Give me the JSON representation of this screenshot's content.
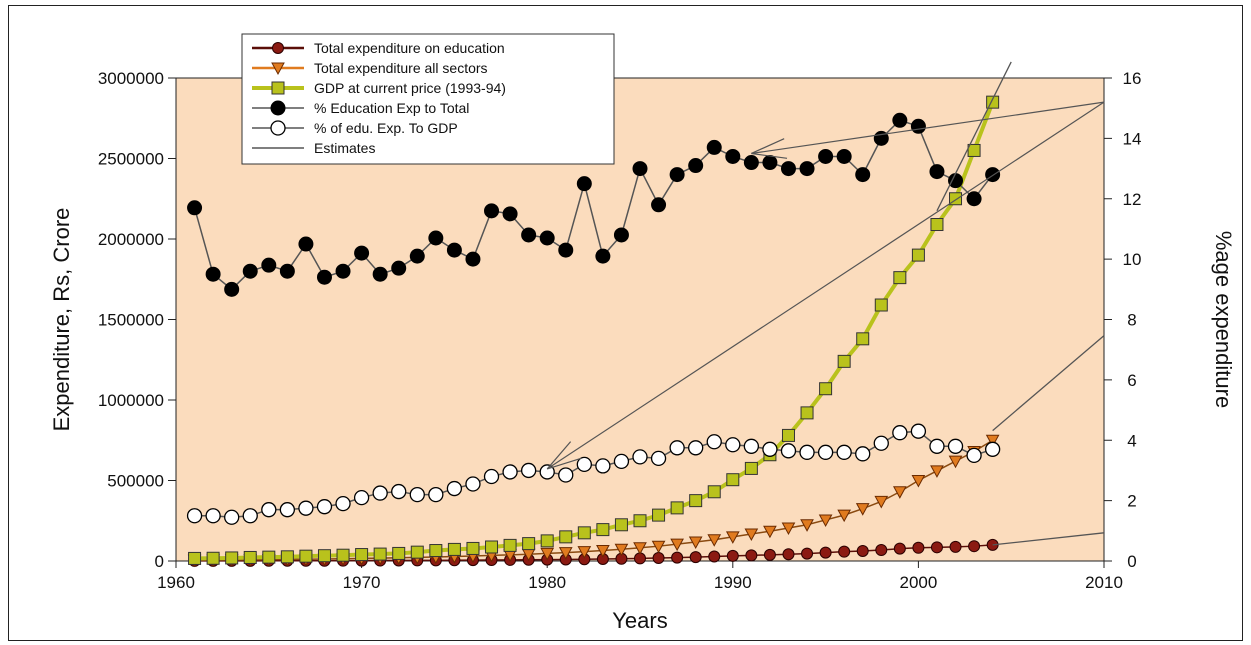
{
  "chart_data": {
    "type": "line",
    "xlabel": "Years",
    "ylabel_left": "Expenditure, Rs, Crore",
    "ylabel_right": "%age expenditure",
    "xlim": [
      1960,
      2010
    ],
    "ylim_left": [
      0,
      3000000
    ],
    "ylim_right": [
      0,
      16
    ],
    "xticks": [
      "1960",
      "1970",
      "1980",
      "1990",
      "2000",
      "2010"
    ],
    "yticks_left": [
      "0",
      "500000",
      "1000000",
      "1500000",
      "2000000",
      "2500000",
      "3000000"
    ],
    "yticks_right": [
      "0",
      "2",
      "4",
      "6",
      "8",
      "10",
      "12",
      "14",
      "16"
    ],
    "legend_position": "top-left",
    "background_color": "#fbdcbd",
    "x": [
      1961,
      1962,
      1963,
      1964,
      1965,
      1966,
      1967,
      1968,
      1969,
      1970,
      1971,
      1972,
      1973,
      1974,
      1975,
      1976,
      1977,
      1978,
      1979,
      1980,
      1981,
      1982,
      1983,
      1984,
      1985,
      1986,
      1987,
      1988,
      1989,
      1990,
      1991,
      1992,
      1993,
      1994,
      1995,
      1996,
      1997,
      1998,
      1999,
      2000,
      2001,
      2002,
      2003,
      2004
    ],
    "series": [
      {
        "name": "Total expenditure on education",
        "axis": "left",
        "marker": "circle",
        "color": "#8b1a12",
        "values": [
          500,
          700,
          800,
          1000,
          1200,
          1400,
          1600,
          1800,
          2000,
          2300,
          2800,
          3200,
          3600,
          4100,
          4700,
          5300,
          6000,
          6700,
          7600,
          8500,
          9600,
          11000,
          12500,
          14300,
          16000,
          18500,
          21000,
          24000,
          28000,
          32000,
          35000,
          38000,
          42000,
          46000,
          52000,
          58000,
          62000,
          68000,
          77000,
          82000,
          85000,
          88000,
          92000,
          100000
        ]
      },
      {
        "name": "Total expenditure all sectors",
        "axis": "left",
        "marker": "triangle-down",
        "color": "#e07b1f",
        "values": [
          5000,
          6000,
          7000,
          8000,
          9000,
          10000,
          11000,
          12500,
          14000,
          16000,
          18000,
          20000,
          22500,
          25000,
          28000,
          31000,
          35000,
          38000,
          42000,
          47000,
          52000,
          58000,
          65000,
          73000,
          82000,
          92000,
          105000,
          118000,
          132000,
          150000,
          168000,
          185000,
          205000,
          225000,
          255000,
          285000,
          325000,
          370000,
          430000,
          500000,
          560000,
          620000,
          680000,
          750000
        ]
      },
      {
        "name": "GDP at current price (1993-94)",
        "axis": "left",
        "marker": "square",
        "color": "#b9c21c",
        "values": [
          16000,
          17000,
          19000,
          22000,
          24000,
          26000,
          30000,
          33000,
          36000,
          40000,
          43000,
          47000,
          55000,
          65000,
          72000,
          78000,
          87000,
          97000,
          108000,
          125000,
          150000,
          175000,
          195000,
          225000,
          250000,
          285000,
          330000,
          375000,
          430000,
          505000,
          575000,
          660000,
          780000,
          920000,
          1070000,
          1240000,
          1380000,
          1590000,
          1760000,
          1900000,
          2090000,
          2250000,
          2550000,
          2850000
        ]
      },
      {
        "name": "% Education Exp to Total",
        "axis": "right",
        "marker": "filled-circle",
        "color": "#000000",
        "values": [
          11.7,
          9.5,
          9.0,
          9.6,
          9.8,
          9.6,
          10.5,
          9.4,
          9.6,
          10.2,
          9.5,
          9.7,
          10.1,
          10.7,
          10.3,
          10.0,
          11.6,
          11.5,
          10.8,
          10.7,
          10.3,
          12.5,
          10.1,
          10.8,
          13.0,
          11.8,
          12.8,
          13.1,
          13.7,
          13.4,
          13.2,
          13.2,
          13.0,
          13.0,
          13.4,
          13.4,
          12.8,
          14.0,
          14.6,
          14.4,
          12.9,
          12.6,
          12.0,
          12.8
        ]
      },
      {
        "name": "% of edu. Exp. To GDP",
        "axis": "right",
        "marker": "open-circle",
        "color": "#000000",
        "values": [
          1.5,
          1.5,
          1.45,
          1.5,
          1.7,
          1.7,
          1.75,
          1.8,
          1.9,
          2.1,
          2.25,
          2.3,
          2.2,
          2.2,
          2.4,
          2.55,
          2.8,
          2.95,
          3.0,
          2.95,
          2.85,
          3.2,
          3.15,
          3.3,
          3.45,
          3.4,
          3.75,
          3.75,
          3.95,
          3.85,
          3.8,
          3.7,
          3.65,
          3.6,
          3.6,
          3.6,
          3.55,
          3.9,
          4.25,
          4.3,
          3.8,
          3.8,
          3.5,
          3.7
        ]
      }
    ],
    "estimates": {
      "name": "Estimates",
      "color": "#555555",
      "lines": [
        {
          "axis": "left",
          "points": [
            [
              2001,
              2175000
            ],
            [
              2005,
              3100000
            ]
          ]
        },
        {
          "axis": "left",
          "points": [
            [
              2004,
              810000
            ],
            [
              2010,
              1400000
            ]
          ]
        },
        {
          "axis": "left",
          "points": [
            [
              2004,
              100000
            ],
            [
              2010,
              175000
            ]
          ]
        }
      ],
      "arrows": [
        {
          "axis": "right",
          "points": [
            [
              2010,
              15.2
            ],
            [
              1991,
              13.5
            ]
          ]
        },
        {
          "axis": "right",
          "points": [
            [
              2010,
              15.2
            ],
            [
              1980,
              3.05
            ]
          ]
        }
      ]
    }
  }
}
